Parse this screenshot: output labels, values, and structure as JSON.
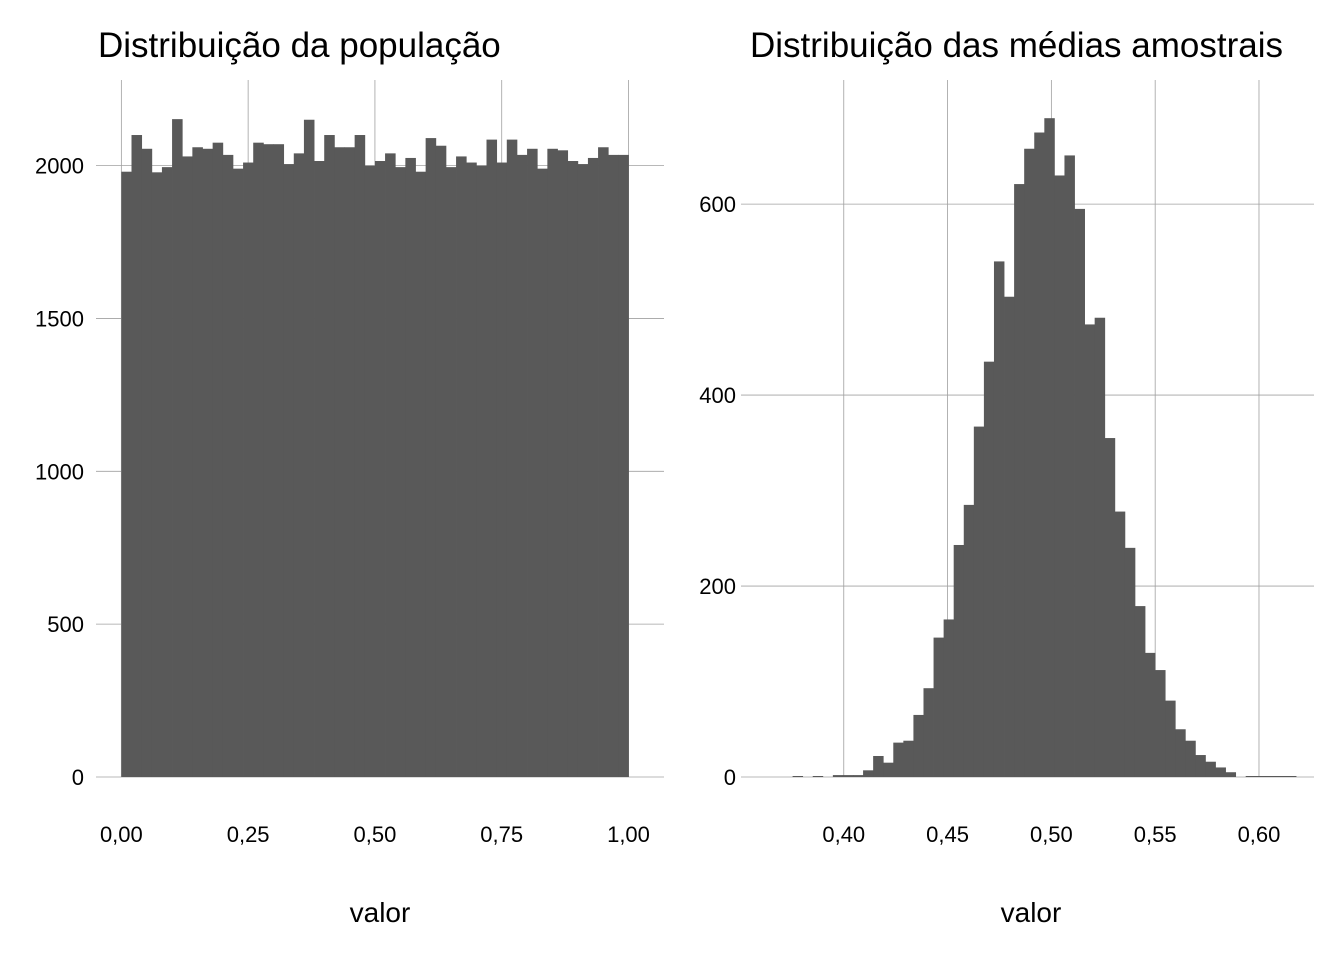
{
  "chart_data": [
    {
      "type": "bar",
      "title": "Distribuição da população",
      "xlabel": "valor",
      "ylabel": "",
      "xlim": [
        -0.05,
        1.07
      ],
      "ylim": [
        0,
        2280
      ],
      "x_ticks": [
        0,
        0.25,
        0.5,
        0.75,
        1
      ],
      "x_tick_labels": [
        "0,00",
        "0,25",
        "0,50",
        "0,75",
        "1,00"
      ],
      "y_ticks": [
        0,
        500,
        1000,
        1500,
        2000
      ],
      "y_tick_labels": [
        "0",
        "500",
        "1000",
        "1500",
        "2000"
      ],
      "grid": true,
      "bin_start": 0,
      "bin_width": 0.02,
      "values": [
        1980,
        2100,
        2055,
        1978,
        1995,
        2152,
        2030,
        2060,
        2055,
        2075,
        2035,
        1990,
        2010,
        2075,
        2070,
        2070,
        2005,
        2040,
        2150,
        2015,
        2100,
        2060,
        2060,
        2100,
        2000,
        2015,
        2040,
        1995,
        2025,
        1980,
        2090,
        2065,
        1995,
        2030,
        2010,
        2000,
        2085,
        2010,
        2085,
        2035,
        2055,
        1990,
        2055,
        2050,
        2015,
        2005,
        2025,
        2060,
        2035,
        2035
      ]
    },
    {
      "type": "bar",
      "title": "Distribuição das médias amostrais",
      "xlabel": "valor",
      "ylabel": "",
      "xlim": [
        0.3505,
        0.6265
      ],
      "ylim": [
        0,
        730
      ],
      "x_ticks": [
        0.4,
        0.45,
        0.5,
        0.55,
        0.6
      ],
      "x_tick_labels": [
        "0,40",
        "0,45",
        "0,50",
        "0,55",
        "0,60"
      ],
      "y_ticks": [
        0,
        200,
        400,
        600
      ],
      "y_tick_labels": [
        "0",
        "200",
        "400",
        "600"
      ],
      "grid": true,
      "bin_start": 0.3705,
      "bin_width": 0.00485,
      "values": [
        0,
        1,
        0,
        1,
        0,
        2,
        2,
        2,
        7,
        22,
        15,
        36,
        38,
        65,
        93,
        146,
        165,
        243,
        285,
        367,
        435,
        540,
        503,
        621,
        658,
        675,
        690,
        630,
        651,
        595,
        474,
        481,
        355,
        278,
        240,
        179,
        130,
        112,
        80,
        50,
        38,
        23,
        16,
        10,
        5,
        0,
        1,
        1,
        1,
        1,
        1
      ]
    }
  ]
}
